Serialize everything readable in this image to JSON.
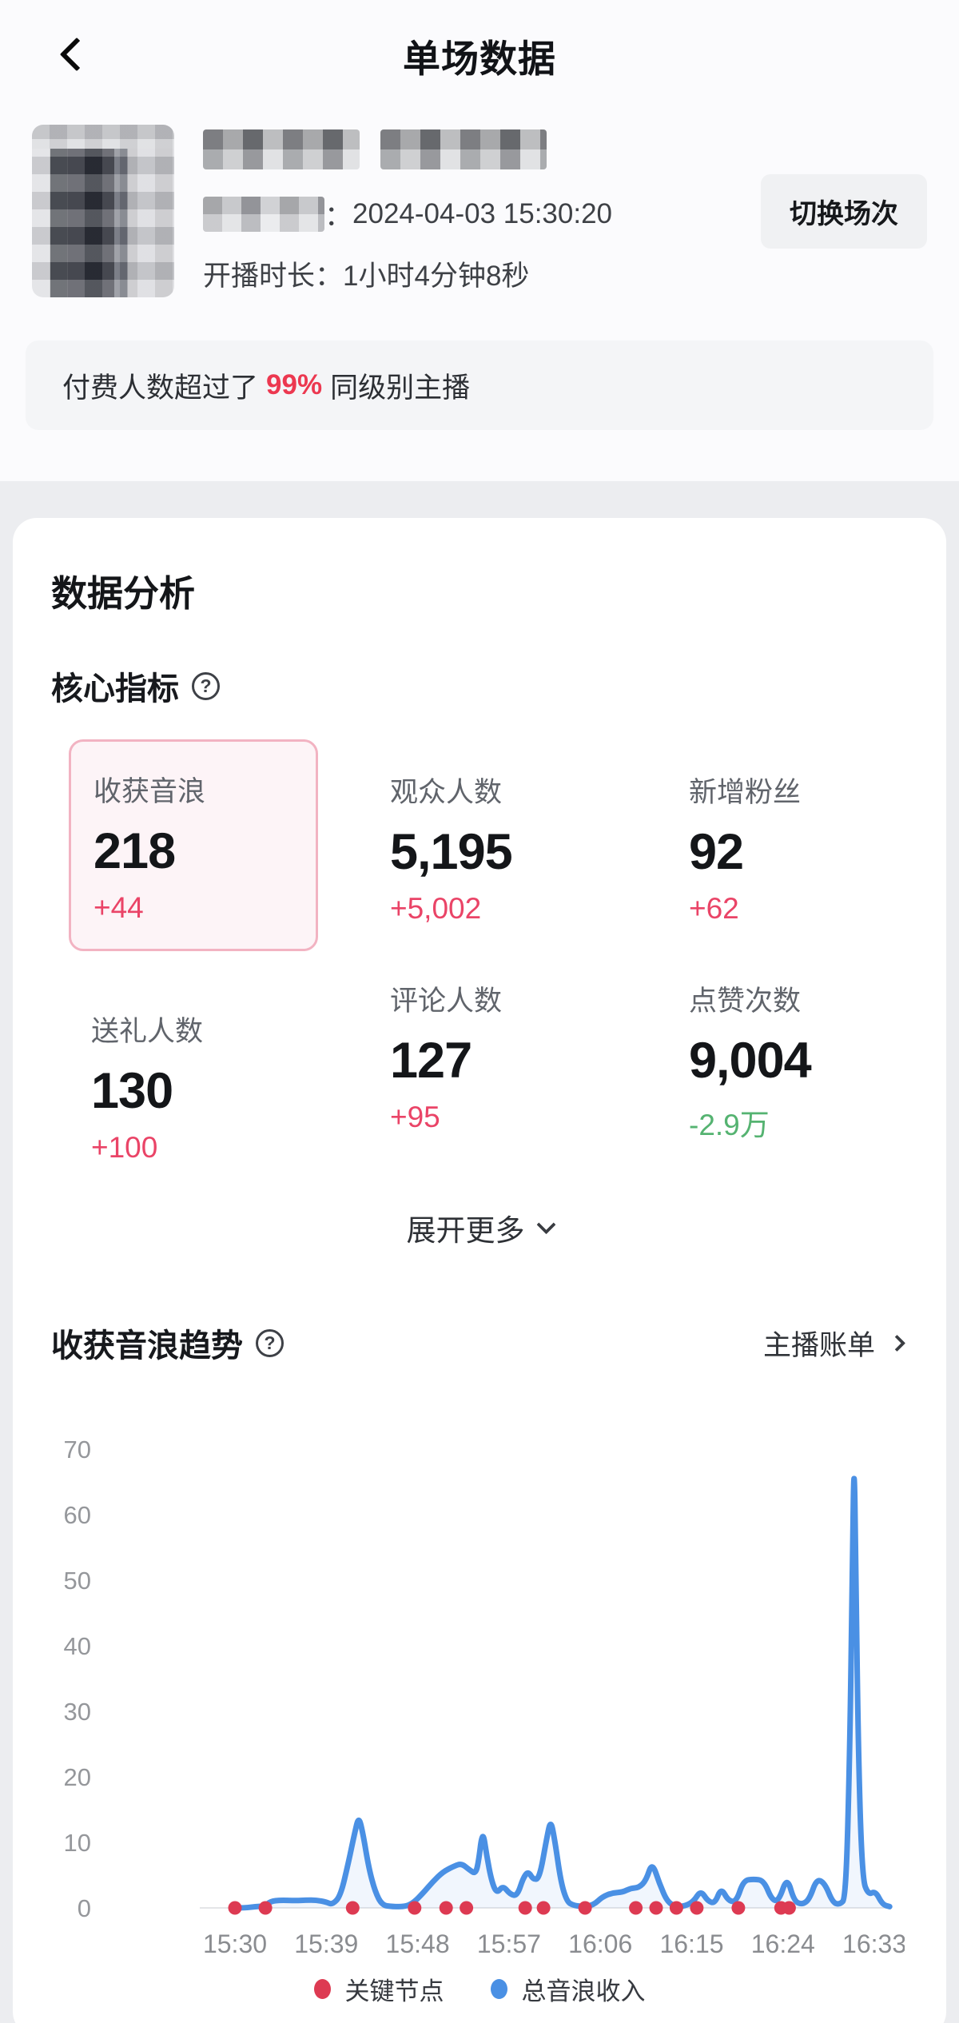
{
  "header": {
    "title": "单场数据",
    "back_icon": "chevron-left-icon"
  },
  "profile": {
    "avatar": "blurred-portrait-photo",
    "name": "blurred-username",
    "start_separator": "：",
    "start_datetime": "2024-04-03 15:30:20",
    "duration_label": "开播时长：",
    "duration_value": "1小时4分钟8秒",
    "switch_button": "切换场次"
  },
  "banner": {
    "prefix": "付费人数超过了",
    "highlight": "99%",
    "suffix": "同级别主播"
  },
  "analysis": {
    "title": "数据分析",
    "core_title": "核心指标",
    "metrics": [
      {
        "label": "收获音浪",
        "value": "218",
        "delta": "+44",
        "delta_color": "red",
        "selected": true
      },
      {
        "label": "观众人数",
        "value": "5,195",
        "delta": "+5,002",
        "delta_color": "red",
        "selected": false
      },
      {
        "label": "新增粉丝",
        "value": "92",
        "delta": "+62",
        "delta_color": "red",
        "selected": false
      },
      {
        "label": "送礼人数",
        "value": "130",
        "delta": "+100",
        "delta_color": "red",
        "selected": false
      },
      {
        "label": "评论人数",
        "value": "127",
        "delta": "+95",
        "delta_color": "red",
        "selected": false
      },
      {
        "label": "点赞次数",
        "value": "9,004",
        "delta": "-2.9万",
        "delta_color": "green",
        "selected": false
      }
    ],
    "expand_label": "展开更多"
  },
  "trend": {
    "title": "收获音浪趋势",
    "link": "主播账单"
  },
  "chart_data": {
    "type": "line",
    "title": "收获音浪趋势",
    "xlabel": "",
    "ylabel": "",
    "x_axis": {
      "labels": [
        "15:30",
        "15:39",
        "15:48",
        "15:57",
        "16:06",
        "16:15",
        "16:24",
        "16:33"
      ],
      "minutes_between_labels": 9,
      "start_time": "15:30"
    },
    "y_axis": {
      "ticks": [
        0,
        10,
        20,
        30,
        40,
        50,
        60,
        70
      ],
      "range": [
        0,
        70
      ]
    },
    "grid": false,
    "legend_position": "bottom",
    "legend": [
      "关键节点",
      "总音浪收入"
    ],
    "series": [
      {
        "name": "总音浪收入",
        "color": "#4a90e4",
        "fill": "rgba(74,144,228,0.08)",
        "points_t_minutes_after_1530_and_value": [
          [
            0,
            0
          ],
          [
            1,
            0
          ],
          [
            2,
            0.2
          ],
          [
            3,
            0.3
          ],
          [
            3.5,
            1
          ],
          [
            4.5,
            1.2
          ],
          [
            6,
            1.1
          ],
          [
            7,
            1.2
          ],
          [
            8,
            1.2
          ],
          [
            9,
            0.9
          ],
          [
            9.6,
            0.5
          ],
          [
            10.4,
            1.8
          ],
          [
            11.2,
            7
          ],
          [
            11.8,
            11.5
          ],
          [
            12.2,
            14
          ],
          [
            12.6,
            11.5
          ],
          [
            13.2,
            6
          ],
          [
            13.8,
            2.5
          ],
          [
            14.5,
            0.4
          ],
          [
            15.5,
            0.2
          ],
          [
            16.8,
            0.2
          ],
          [
            17.6,
            0.8
          ],
          [
            18.5,
            2.2
          ],
          [
            19.5,
            4
          ],
          [
            20.5,
            5.5
          ],
          [
            21.5,
            6.3
          ],
          [
            22.3,
            6.8
          ],
          [
            23.1,
            5.8
          ],
          [
            23.7,
            5.2
          ],
          [
            24,
            7
          ],
          [
            24.4,
            12
          ],
          [
            24.8,
            8
          ],
          [
            25.3,
            4
          ],
          [
            25.8,
            2.2
          ],
          [
            26.4,
            3.4
          ],
          [
            27.1,
            2.1
          ],
          [
            27.8,
            1.8
          ],
          [
            28.4,
            4.6
          ],
          [
            28.9,
            5.6
          ],
          [
            29.4,
            4.3
          ],
          [
            30,
            4.5
          ],
          [
            30.7,
            10.5
          ],
          [
            31.1,
            13.5
          ],
          [
            31.5,
            10.5
          ],
          [
            32.1,
            4
          ],
          [
            32.7,
            1
          ],
          [
            33.3,
            0.4
          ],
          [
            34.2,
            0.2
          ],
          [
            35.3,
            0.4
          ],
          [
            36.2,
            1.7
          ],
          [
            37.2,
            2.3
          ],
          [
            38.2,
            2.4
          ],
          [
            39,
            3
          ],
          [
            39.8,
            3.1
          ],
          [
            40.5,
            4.2
          ],
          [
            41.1,
            7
          ],
          [
            41.8,
            3.8
          ],
          [
            42.6,
            0.9
          ],
          [
            43.5,
            0.2
          ],
          [
            44.4,
            0.3
          ],
          [
            45.2,
            1
          ],
          [
            45.9,
            2.7
          ],
          [
            46.6,
            1
          ],
          [
            47.3,
            0.7
          ],
          [
            47.9,
            3.1
          ],
          [
            48.6,
            1.1
          ],
          [
            49.4,
            0.9
          ],
          [
            50.1,
            4.2
          ],
          [
            51.1,
            4.4
          ],
          [
            52.1,
            4.2
          ],
          [
            52.9,
            1.2
          ],
          [
            53.6,
            1.1
          ],
          [
            54.4,
            4.8
          ],
          [
            55.1,
            1
          ],
          [
            55.9,
            0.5
          ],
          [
            56.6,
            1.3
          ],
          [
            57.3,
            4.4
          ],
          [
            58.1,
            3.8
          ],
          [
            58.9,
            0.8
          ],
          [
            59.6,
            0.5
          ],
          [
            60.2,
            1.5
          ],
          [
            60.6,
            25
          ],
          [
            60.85,
            55
          ],
          [
            61,
            69
          ],
          [
            61.15,
            55
          ],
          [
            61.4,
            25
          ],
          [
            61.8,
            4.5
          ],
          [
            62.4,
            2
          ],
          [
            63.1,
            2.6
          ],
          [
            63.8,
            0.5
          ],
          [
            64.5,
            0.2
          ]
        ],
        "peak": {
          "time": "16:31",
          "value": 69
        }
      }
    ],
    "key_nodes": {
      "name": "关键节点",
      "color": "#dd3a52",
      "t_minutes": [
        0,
        3,
        11.6,
        17.7,
        20.8,
        22.8,
        28.6,
        30.4,
        34.5,
        39.5,
        41.5,
        43.5,
        45.5,
        49.6,
        53.8,
        54.6
      ],
      "times": [
        "15:30",
        "15:33",
        "15:42",
        "15:48",
        "15:51",
        "15:53",
        "15:59",
        "16:00",
        "16:05",
        "16:10",
        "16:12",
        "16:14",
        "16:16",
        "16:20",
        "16:24",
        "16:25"
      ]
    }
  },
  "colors": {
    "accent_red": "#ea4467",
    "highlight_red": "#ec3850",
    "green": "#55b371",
    "blue": "#4a90e4",
    "node_red": "#dd3a52",
    "selected_border": "#f2b3c2",
    "selected_bg": "#fdf4f7",
    "card_bg": "#ffffff",
    "page_bg": "#ecedf0",
    "top_bg": "#fbfbfd"
  }
}
